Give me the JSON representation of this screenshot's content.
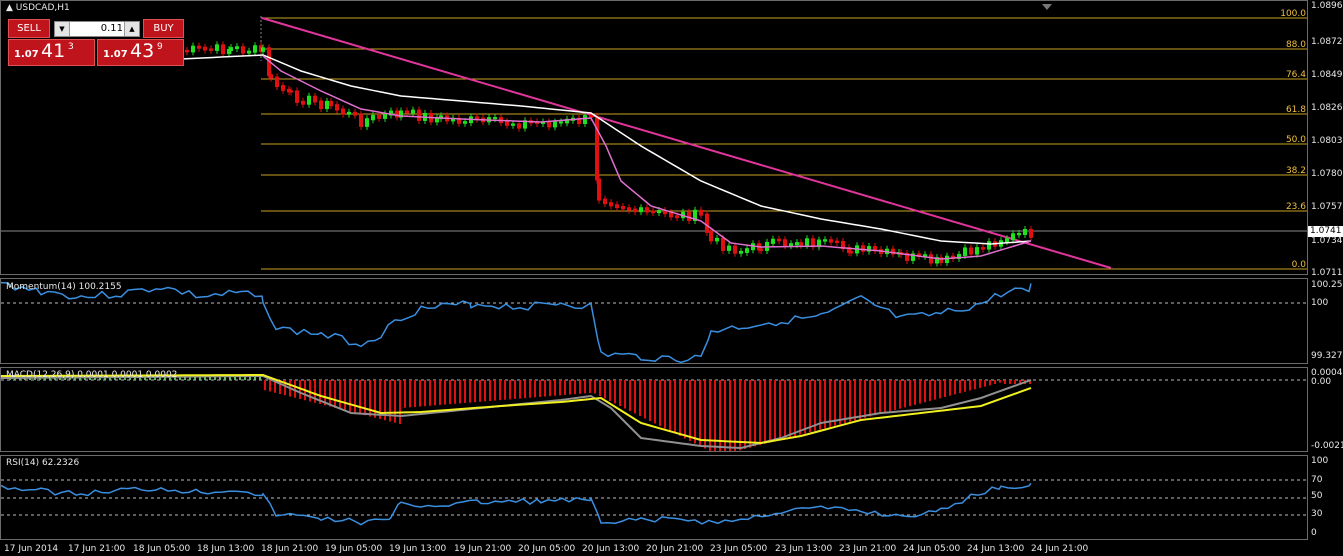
{
  "main_chart": {
    "title": "USDCAD,H1",
    "price_labels": [
      "1.0896",
      "1.0872",
      "1.0849",
      "1.0826",
      "1.0803",
      "1.0780",
      "1.0757",
      "1.0734",
      "1.0711"
    ],
    "current_price": "1.0741",
    "fib_levels": [
      "100.0",
      "88.0",
      "76.4",
      "61.8",
      "50.0",
      "38.2",
      "23.6",
      "0.0"
    ]
  },
  "trade_panel": {
    "sell_label": "SELL",
    "buy_label": "BUY",
    "lot_value": "0.11",
    "sell_price_prefix": "1.07",
    "sell_price_big": "41",
    "sell_price_sup": "3",
    "buy_price_prefix": "1.07",
    "buy_price_big": "43",
    "buy_price_sup": "9"
  },
  "momentum": {
    "title": "Momentum(14) 100.2155",
    "labels": [
      "100.253",
      "100",
      "99.3274"
    ]
  },
  "macd": {
    "title": "MACD(12,26,9) 0.0001 0.0001 0.0002",
    "labels": [
      "0.0004",
      "0.00",
      "-0.0021"
    ]
  },
  "rsi": {
    "title": "RSI(14) 62.2326",
    "labels": [
      "100",
      "70",
      "50",
      "30",
      "0"
    ]
  },
  "time_axis": [
    "17 Jun 2014",
    "17 Jun 21:00",
    "18 Jun 05:00",
    "18 Jun 13:00",
    "18 Jun 21:00",
    "19 Jun 05:00",
    "19 Jun 13:00",
    "19 Jun 21:00",
    "20 Jun 05:00",
    "20 Jun 13:00",
    "20 Jun 21:00",
    "23 Jun 05:00",
    "23 Jun 13:00",
    "23 Jun 21:00",
    "24 Jun 05:00",
    "24 Jun 13:00",
    "24 Jun 21:00"
  ],
  "colors": {
    "trendline": "#e0359a",
    "fib": "#c8a020",
    "ma_white": "#ffffff",
    "ma_pink": "#e070d0",
    "momentum_line": "#3a8fe0",
    "macd_hist": "#e01010",
    "macd_signal": "#f0f020",
    "macd_grey": "#909090",
    "rsi_line": "#3a8fe0",
    "bull": "#20e020",
    "bear": "#e01010"
  }
}
